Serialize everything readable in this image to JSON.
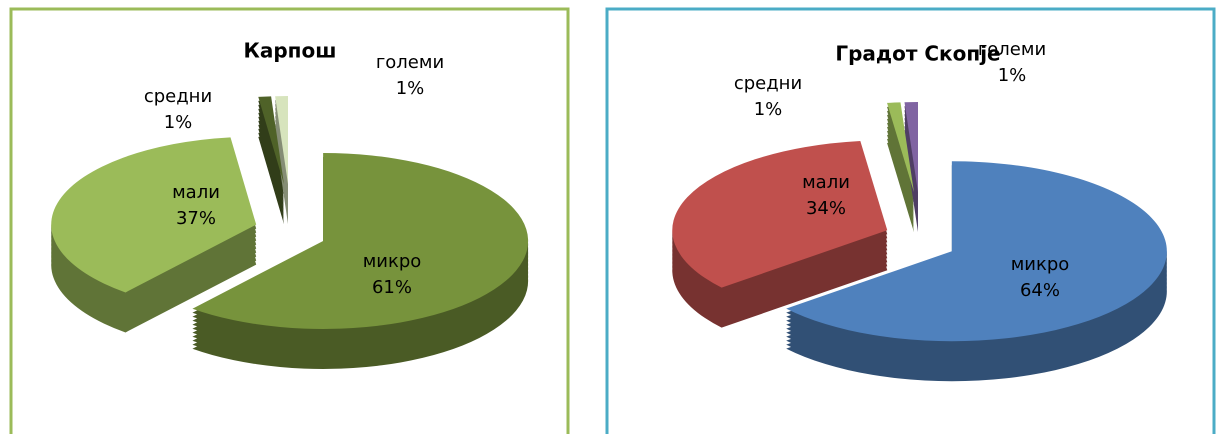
{
  "chart_data": [
    {
      "type": "pie",
      "title": "Карпош",
      "categories": [
        "микро",
        "мали",
        "средни",
        "големи"
      ],
      "values": [
        61,
        37,
        1,
        1
      ],
      "value_labels": [
        "61%",
        "37%",
        "1%",
        "1%"
      ],
      "colors": [
        "#77933c",
        "#9bbb59",
        "#4f6228",
        "#d7e4bd"
      ]
    },
    {
      "type": "pie",
      "title": "Градот Скопје",
      "categories": [
        "микро",
        "мали",
        "средни",
        "големи"
      ],
      "values": [
        64,
        34,
        1,
        1
      ],
      "value_labels": [
        "64%",
        "34%",
        "1%",
        "1%"
      ],
      "colors": [
        "#4f81bd",
        "#c0504d",
        "#9bbb59",
        "#8064a2"
      ]
    }
  ]
}
